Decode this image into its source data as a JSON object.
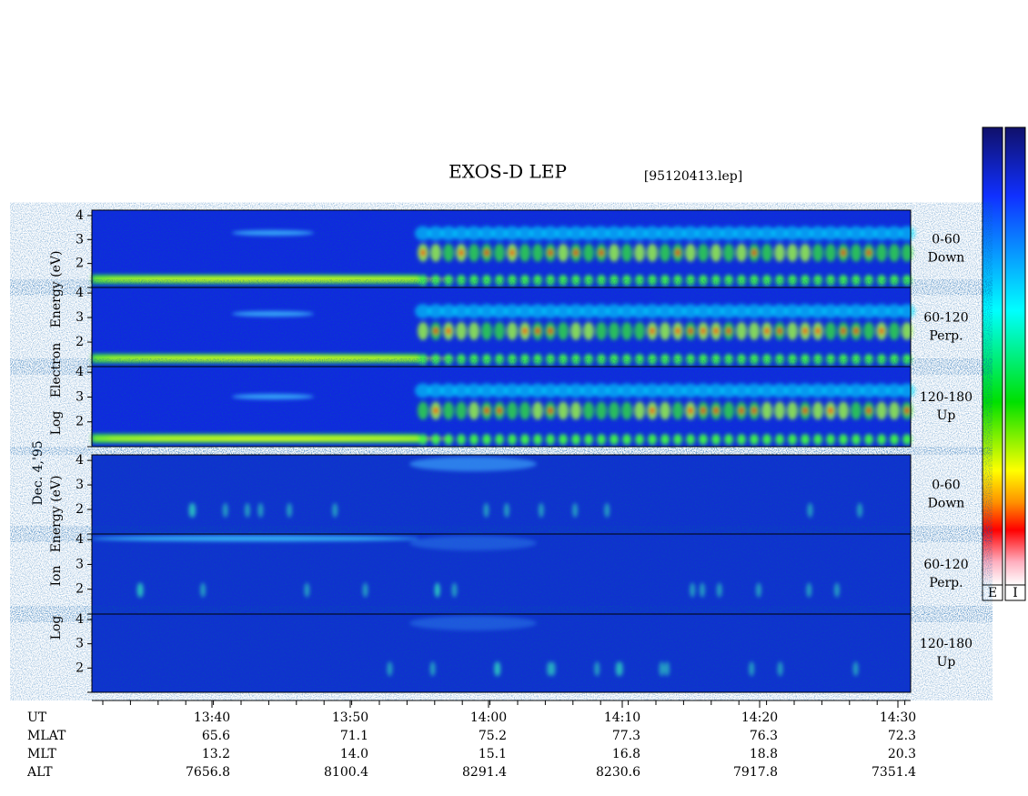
{
  "title": "EXOS-D LEP",
  "file": "[95120413.lep]",
  "date": "Dec. 4,'95",
  "electron_label": [
    "Log",
    "Electron",
    "Energy (eV)"
  ],
  "ion_label": [
    "Log",
    "Ion",
    "Energy (eV)"
  ],
  "panels": [
    {
      "ticks": [
        "4",
        "3",
        "2"
      ],
      "channel": [
        "0-60",
        "Down"
      ]
    },
    {
      "ticks": [
        "4",
        "3",
        "2"
      ],
      "channel": [
        "60-120",
        "Perp."
      ]
    },
    {
      "ticks": [
        "4",
        "3",
        "2"
      ],
      "channel": [
        "120-180",
        "Up"
      ]
    },
    {
      "ticks": [
        "4",
        "3",
        "2"
      ],
      "channel": [
        "0-60",
        "Down"
      ]
    },
    {
      "ticks": [
        "4",
        "3",
        "2"
      ],
      "channel": [
        "60-120",
        "Perp."
      ]
    },
    {
      "ticks": [
        "4",
        "3",
        "2"
      ],
      "channel": [
        "120-180",
        "Up"
      ]
    }
  ],
  "time_rows": [
    {
      "label": "UT",
      "values": [
        "13:40",
        "13:50",
        "14:00",
        "14:10",
        "14:20",
        "14:30"
      ]
    },
    {
      "label": "MLAT",
      "values": [
        "65.6",
        "71.1",
        "75.2",
        "77.3",
        "76.3",
        "72.3"
      ]
    },
    {
      "label": "MLT",
      "values": [
        "13.2",
        "14.0",
        "15.1",
        "16.8",
        "18.8",
        "20.3"
      ]
    },
    {
      "label": "ALT",
      "values": [
        "7656.8",
        "8100.4",
        "8291.4",
        "8230.6",
        "7917.8",
        "7351.4"
      ]
    }
  ],
  "colorbar_labels": [
    "E",
    "I"
  ]
}
